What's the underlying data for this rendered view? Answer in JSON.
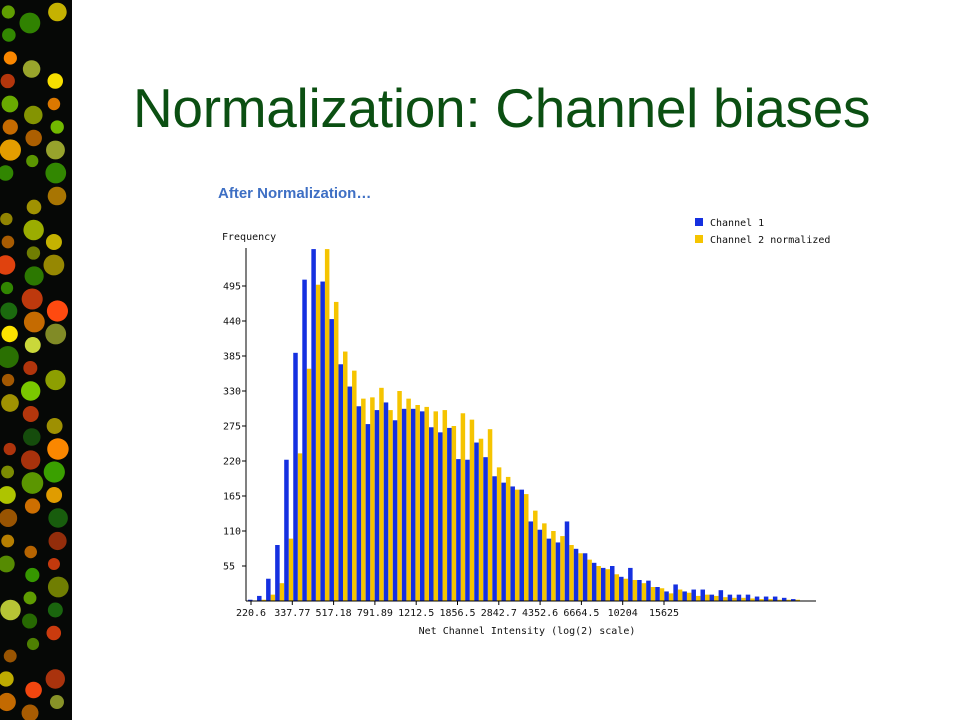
{
  "slide": {
    "title": "Normalization: Channel biases",
    "subtitle": "After Normalization…"
  },
  "decor": {
    "left_strip": "microarray-image"
  },
  "colors": {
    "title": "#0b4f12",
    "subtitle": "#3e6fc4",
    "channel1": "#1530e0",
    "channel2": "#f5c400"
  },
  "chart_data": {
    "type": "bar",
    "ylabel": "Frequency",
    "xlabel": "Net Channel Intensity (log(2) scale)",
    "ylim": [
      0,
      550
    ],
    "yticks": [
      55,
      110,
      165,
      220,
      275,
      330,
      385,
      440,
      495
    ],
    "x_tick_labels": [
      "220.6",
      "337.77",
      "517.18",
      "791.89",
      "1212.5",
      "1856.5",
      "2842.7",
      "4352.6",
      "6664.5",
      "10204",
      "15625"
    ],
    "legend_position": "top-right",
    "grid": false,
    "series": [
      {
        "name": "Channel 1",
        "values": [
          2,
          8,
          35,
          88,
          222,
          390,
          505,
          553,
          502,
          443,
          372,
          337,
          306,
          278,
          300,
          312,
          284,
          302,
          302,
          298,
          273,
          265,
          272,
          223,
          222,
          249,
          226,
          196,
          186,
          180,
          175,
          125,
          112,
          98,
          92,
          125,
          82,
          75,
          60,
          52,
          55,
          38,
          52,
          33,
          32,
          22,
          15,
          26,
          15,
          18,
          18,
          10,
          17,
          10,
          10,
          10,
          7,
          7,
          7,
          5,
          3
        ]
      },
      {
        "name": "Channel 2 normalized",
        "values": [
          0,
          2,
          10,
          28,
          98,
          232,
          365,
          497,
          553,
          470,
          392,
          362,
          318,
          320,
          335,
          300,
          330,
          318,
          308,
          305,
          298,
          300,
          275,
          295,
          285,
          255,
          270,
          210,
          195,
          175,
          168,
          142,
          122,
          110,
          102,
          88,
          75,
          65,
          55,
          50,
          42,
          35,
          33,
          28,
          22,
          20,
          12,
          18,
          13,
          8,
          10,
          8,
          6,
          5,
          5,
          4,
          3,
          3,
          2,
          2,
          2
        ]
      }
    ]
  }
}
